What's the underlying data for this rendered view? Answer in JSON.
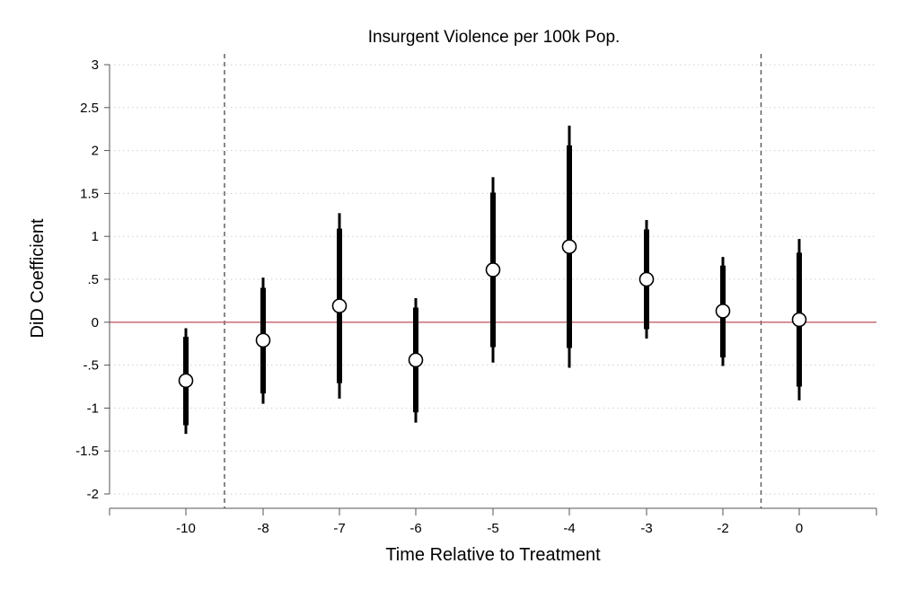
{
  "chart_data": {
    "type": "scatter",
    "title": "Insurgent Violence per 100k Pop.",
    "xlabel": "Time Relative to Treatment",
    "ylabel": "DiD Coefficient",
    "ylim": [
      -2,
      3
    ],
    "yticks": [
      {
        "value": -2,
        "label": "-2"
      },
      {
        "value": -1.5,
        "label": "-1.5"
      },
      {
        "value": -1,
        "label": "-1"
      },
      {
        "value": -0.5,
        "label": "-.5"
      },
      {
        "value": 0,
        "label": "0"
      },
      {
        "value": 0.5,
        "label": ".5"
      },
      {
        "value": 1,
        "label": "1"
      },
      {
        "value": 1.5,
        "label": "1.5"
      },
      {
        "value": 2,
        "label": "2"
      },
      {
        "value": 2.5,
        "label": "2.5"
      },
      {
        "value": 3,
        "label": "3"
      }
    ],
    "categories": [
      "-10",
      "-8",
      "-7",
      "-6",
      "-5",
      "-4",
      "-3",
      "-2",
      "0"
    ],
    "points": [
      {
        "label": "-10",
        "estimate": -0.68,
        "ci95": [
          -1.3,
          -0.07
        ],
        "ci90": [
          -1.2,
          -0.17
        ]
      },
      {
        "label": "-8",
        "estimate": -0.21,
        "ci95": [
          -0.95,
          0.52
        ],
        "ci90": [
          -0.83,
          0.4
        ]
      },
      {
        "label": "-7",
        "estimate": 0.19,
        "ci95": [
          -0.89,
          1.27
        ],
        "ci90": [
          -0.71,
          1.09
        ]
      },
      {
        "label": "-6",
        "estimate": -0.44,
        "ci95": [
          -1.17,
          0.28
        ],
        "ci90": [
          -1.05,
          0.17
        ]
      },
      {
        "label": "-5",
        "estimate": 0.61,
        "ci95": [
          -0.47,
          1.69
        ],
        "ci90": [
          -0.29,
          1.51
        ]
      },
      {
        "label": "-4",
        "estimate": 0.88,
        "ci95": [
          -0.53,
          2.29
        ],
        "ci90": [
          -0.3,
          2.06
        ]
      },
      {
        "label": "-3",
        "estimate": 0.5,
        "ci95": [
          -0.19,
          1.19
        ],
        "ci90": [
          -0.08,
          1.08
        ]
      },
      {
        "label": "-2",
        "estimate": 0.13,
        "ci95": [
          -0.51,
          0.76
        ],
        "ci90": [
          -0.41,
          0.66
        ]
      },
      {
        "label": "0",
        "estimate": 0.03,
        "ci95": [
          -0.91,
          0.97
        ],
        "ci90": [
          -0.75,
          0.81
        ]
      }
    ],
    "reference_lines": {
      "horizontal_y": 0,
      "horizontal_color": "#c0606a",
      "vertical_dashed_between": [
        [
          "-10",
          "-8"
        ],
        [
          "-2",
          "0"
        ]
      ]
    },
    "grid": true,
    "legend": "none"
  }
}
